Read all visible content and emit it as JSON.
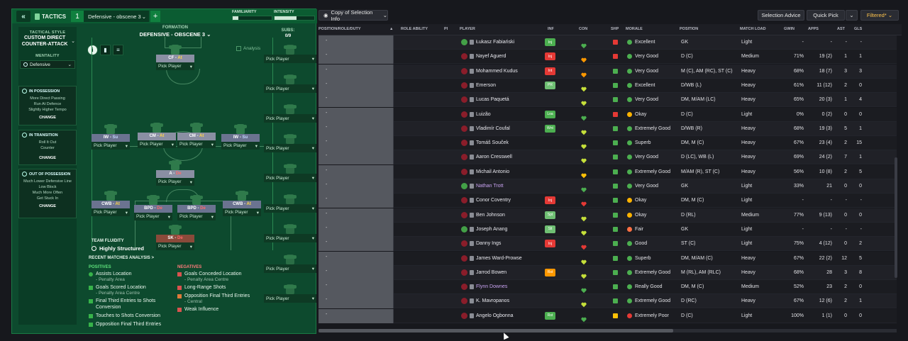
{
  "left": {
    "tactics_label": "TACTICS",
    "tactic_slot": "1",
    "tactic_name": "Defensive - obscene 3",
    "familiarity_label": "FAMILIARITY",
    "intensity_label": "INTENSITY",
    "familiarity": 0.15,
    "intensity": 0.55,
    "tactical_style_caption": "TACTICAL STYLE",
    "tactical_style": "CUSTOM DIRECT COUNTER-ATTACK",
    "mentality_caption": "MENTALITY",
    "mentality": "Defensive",
    "in_possession": {
      "title": "IN POSSESSION",
      "lines": [
        "More Direct Passing",
        "Run At Defence",
        "Slightly Higher Tempo"
      ],
      "change": "CHANGE"
    },
    "in_transition": {
      "title": "IN TRANSITION",
      "lines": [
        "Roll It Out",
        "Counter"
      ],
      "change": "CHANGE"
    },
    "out_of_possession": {
      "title": "OUT OF POSSESSION",
      "lines": [
        "Much Lower Defensive Line",
        "Low Block",
        "Much More Often",
        "Get Stuck In"
      ],
      "change": "CHANGE"
    },
    "formation_caption": "FORMATION",
    "formation_name": "DEFENSIVE - OBSCENE 3",
    "analysis_label": "Analysis",
    "subs_caption": "SUBS:",
    "subs_count": "0/9",
    "pick_label": "Pick Player",
    "positions": [
      {
        "role": "CF",
        "duty": "At"
      },
      {
        "role": "IW",
        "duty": "Su"
      },
      {
        "role": "CM",
        "duty": "At"
      },
      {
        "role": "CM",
        "duty": "At"
      },
      {
        "role": "IW",
        "duty": "Su"
      },
      {
        "role": "A",
        "duty": "De"
      },
      {
        "role": "CWB",
        "duty": "At"
      },
      {
        "role": "BPD",
        "duty": "De"
      },
      {
        "role": "BPD",
        "duty": "De"
      },
      {
        "role": "CWB",
        "duty": "At"
      },
      {
        "role": "SK",
        "duty": "De"
      }
    ],
    "team_fluidity_caption": "TEAM FLUIDITY",
    "team_fluidity": "Highly Structured",
    "recent_matches_title": "RECENT MATCHES ANALYSIS >",
    "positives_title": "POSITIVES",
    "negatives_title": "NEGATIVES",
    "positives": [
      {
        "text": "Assists Location",
        "sub": "- Penalty Area"
      },
      {
        "text": "Goals Scored Location",
        "sub": "- Penalty Area Centre"
      },
      {
        "text": "Final Third Entries to Shots Conversion",
        "sub": ""
      },
      {
        "text": "Touches to Shots Conversion",
        "sub": ""
      },
      {
        "text": "Opposition Final Third Entries",
        "sub": ""
      }
    ],
    "negatives": [
      {
        "text": "Goals Conceded Location",
        "sub": "- Penalty Area Centre"
      },
      {
        "text": "Long-Range Shots",
        "sub": ""
      },
      {
        "text": "Opposition Final Third Entries",
        "sub": "- Central"
      },
      {
        "text": "Weak Influence",
        "sub": ""
      }
    ]
  },
  "right": {
    "view_select": "Copy of Selection Info",
    "selection_advice": "Selection Advice",
    "quick_pick": "Quick Pick",
    "filtered": "Filtered*",
    "columns": [
      "POSITION/ROLE/DUTY",
      "ROLE ABILITY",
      "PI",
      "PLAYER",
      "INF",
      "CON",
      "SHP",
      "MORALE",
      "POSITION",
      "MATCH LOAD",
      "GWIN",
      "APPS",
      "AST",
      "GLS"
    ],
    "players": [
      {
        "pos_dash": "-",
        "name": "Łukasz Fabiański",
        "gk": true,
        "inf": "Inj",
        "inf_color": "#4caf50",
        "con": "#4caf50",
        "shp": "#e53935",
        "morale_color": "#4caf50",
        "morale": "Excellent",
        "position": "GK",
        "load": "Light",
        "gwin": "-",
        "apps": "-",
        "ast": "-",
        "gls": "-",
        "loan": false
      },
      {
        "pos_dash": "-",
        "name": "Nayef Aguerd",
        "gk": false,
        "inf": "Inj",
        "inf_color": "#e53935",
        "con": "#ff9800",
        "shp": "#e53935",
        "morale_color": "#4caf50",
        "morale": "Very Good",
        "position": "D (C)",
        "load": "Medium",
        "gwin": "71%",
        "apps": "19 (2)",
        "ast": "1",
        "gls": "1",
        "loan": false
      },
      {
        "pos_dash": "-",
        "name": "Mohammed Kudus",
        "gk": false,
        "inf": "Int",
        "inf_color": "#e53935",
        "con": "#ff9800",
        "shp": "#4caf50",
        "morale_color": "#4caf50",
        "morale": "Very Good",
        "position": "M (C), AM (RC), ST (C)",
        "load": "Heavy",
        "gwin": "68%",
        "apps": "18 (7)",
        "ast": "3",
        "gls": "3",
        "loan": false
      },
      {
        "pos_dash": "-",
        "name": "Emerson",
        "gk": false,
        "inf": "PR",
        "inf_color": "#6fbf73",
        "con": "#c6e03a",
        "shp": "#4caf50",
        "morale_color": "#4caf50",
        "morale": "Excellent",
        "position": "D/WB (L)",
        "load": "Heavy",
        "gwin": "61%",
        "apps": "11 (12)",
        "ast": "2",
        "gls": "0",
        "loan": false
      },
      {
        "pos_dash": "-",
        "name": "Lucas Paquetá",
        "gk": false,
        "inf": "",
        "inf_color": "",
        "con": "#c6e03a",
        "shp": "#4caf50",
        "morale_color": "#4caf50",
        "morale": "Very Good",
        "position": "DM, M/AM (LC)",
        "load": "Heavy",
        "gwin": "65%",
        "apps": "20 (3)",
        "ast": "1",
        "gls": "4",
        "loan": false
      },
      {
        "pos_dash": "-",
        "name": "Luizão",
        "gk": false,
        "inf": "Loa",
        "inf_color": "#4caf50",
        "con": "#4caf50",
        "shp": "#e53935",
        "morale_color": "#ffb300",
        "morale": "Okay",
        "position": "D (C)",
        "load": "Light",
        "gwin": "0%",
        "apps": "0 (2)",
        "ast": "0",
        "gls": "0",
        "loan": false
      },
      {
        "pos_dash": "-",
        "name": "Vladimír Coufal",
        "gk": false,
        "inf": "Wnt",
        "inf_color": "#4caf50",
        "con": "#c6e03a",
        "shp": "#4caf50",
        "morale_color": "#4caf50",
        "morale": "Extremely Good",
        "position": "D/WB (R)",
        "load": "Heavy",
        "gwin": "68%",
        "apps": "19 (3)",
        "ast": "5",
        "gls": "1",
        "loan": false
      },
      {
        "pos_dash": "-",
        "name": "Tomáš Souček",
        "gk": false,
        "inf": "",
        "inf_color": "",
        "con": "#c6e03a",
        "shp": "#4caf50",
        "morale_color": "#4caf50",
        "morale": "Superb",
        "position": "DM, M (C)",
        "load": "Heavy",
        "gwin": "67%",
        "apps": "23 (4)",
        "ast": "2",
        "gls": "15",
        "loan": false
      },
      {
        "pos_dash": "-",
        "name": "Aaron Cresswell",
        "gk": false,
        "inf": "",
        "inf_color": "",
        "con": "#c6e03a",
        "shp": "#4caf50",
        "morale_color": "#4caf50",
        "morale": "Very Good",
        "position": "D (LC), WB (L)",
        "load": "Heavy",
        "gwin": "69%",
        "apps": "24 (2)",
        "ast": "7",
        "gls": "1",
        "loan": false
      },
      {
        "pos_dash": "-",
        "name": "Michail Antonio",
        "gk": false,
        "inf": "",
        "inf_color": "",
        "con": "#ffc107",
        "shp": "#4caf50",
        "morale_color": "#4caf50",
        "morale": "Extremely Good",
        "position": "M/AM (R), ST (C)",
        "load": "Heavy",
        "gwin": "56%",
        "apps": "10 (8)",
        "ast": "2",
        "gls": "5",
        "loan": false
      },
      {
        "pos_dash": "-",
        "name": "Nathan Trott",
        "gk": true,
        "inf": "",
        "inf_color": "",
        "con": "#4caf50",
        "shp": "#4caf50",
        "morale_color": "#4caf50",
        "morale": "Very Good",
        "position": "GK",
        "load": "Light",
        "gwin": "33%",
        "apps": "21",
        "ast": "0",
        "gls": "0",
        "loan": true
      },
      {
        "pos_dash": "-",
        "name": "Conor Coventry",
        "gk": false,
        "inf": "Inj",
        "inf_color": "#e53935",
        "con": "#e53935",
        "shp": "#4caf50",
        "morale_color": "#ffb300",
        "morale": "Okay",
        "position": "DM, M (C)",
        "load": "Light",
        "gwin": "-",
        "apps": "-",
        "ast": "-",
        "gls": "-",
        "loan": false
      },
      {
        "pos_dash": "-",
        "name": "Ben Johnson",
        "gk": false,
        "inf": "Spt",
        "inf_color": "#6fbf73",
        "con": "#c6e03a",
        "shp": "#4caf50",
        "morale_color": "#ffb300",
        "morale": "Okay",
        "position": "D (RL)",
        "load": "Medium",
        "gwin": "77%",
        "apps": "9 (13)",
        "ast": "0",
        "gls": "0",
        "loan": false
      },
      {
        "pos_dash": "-",
        "name": "Joseph Anang",
        "gk": true,
        "inf": "Slt",
        "inf_color": "#6fbf73",
        "con": "#c6e03a",
        "shp": "#4caf50",
        "morale_color": "#ff7043",
        "morale": "Fair",
        "position": "GK",
        "load": "Light",
        "gwin": "-",
        "apps": "-",
        "ast": "-",
        "gls": "-",
        "loan": false
      },
      {
        "pos_dash": "-",
        "name": "Danny Ings",
        "gk": false,
        "inf": "Inj",
        "inf_color": "#e53935",
        "con": "#e53935",
        "shp": "#4caf50",
        "morale_color": "#4caf50",
        "morale": "Good",
        "position": "ST (C)",
        "load": "Light",
        "gwin": "75%",
        "apps": "4 (12)",
        "ast": "0",
        "gls": "2",
        "loan": false
      },
      {
        "pos_dash": "-",
        "name": "James Ward-Prowse",
        "gk": false,
        "inf": "",
        "inf_color": "",
        "con": "#c6e03a",
        "shp": "#4caf50",
        "morale_color": "#4caf50",
        "morale": "Superb",
        "position": "DM, M/AM (C)",
        "load": "Heavy",
        "gwin": "67%",
        "apps": "22 (2)",
        "ast": "12",
        "gls": "5",
        "loan": false
      },
      {
        "pos_dash": "-",
        "name": "Jarrod Bowen",
        "gk": false,
        "inf": "Rst",
        "inf_color": "#ff9800",
        "con": "#c6e03a",
        "shp": "#4caf50",
        "morale_color": "#4caf50",
        "morale": "Extremely Good",
        "position": "M (RL), AM (RLC)",
        "load": "Heavy",
        "gwin": "68%",
        "apps": "28",
        "ast": "3",
        "gls": "8",
        "loan": false
      },
      {
        "pos_dash": "-",
        "name": "Flynn Downes",
        "gk": false,
        "inf": "",
        "inf_color": "",
        "con": "#4caf50",
        "shp": "#4caf50",
        "morale_color": "#4caf50",
        "morale": "Really Good",
        "position": "DM, M (C)",
        "load": "Medium",
        "gwin": "52%",
        "apps": "23",
        "ast": "2",
        "gls": "0",
        "loan": true
      },
      {
        "pos_dash": "-",
        "name": "K. Mavropanos",
        "gk": false,
        "inf": "",
        "inf_color": "",
        "con": "#c6e03a",
        "shp": "#4caf50",
        "morale_color": "#4caf50",
        "morale": "Extremely Good",
        "position": "D (RC)",
        "load": "Heavy",
        "gwin": "67%",
        "apps": "12 (6)",
        "ast": "2",
        "gls": "1",
        "loan": false
      },
      {
        "pos_dash": "-",
        "name": "Angelo Ogbonna",
        "gk": false,
        "inf": "Rst",
        "inf_color": "#4caf50",
        "con": "#4caf50",
        "shp": "#ffc107",
        "morale_color": "#e53935",
        "morale": "Extremely Poor",
        "position": "D (C)",
        "load": "Light",
        "gwin": "100%",
        "apps": "1 (1)",
        "ast": "0",
        "gls": "0",
        "loan": false
      }
    ]
  }
}
